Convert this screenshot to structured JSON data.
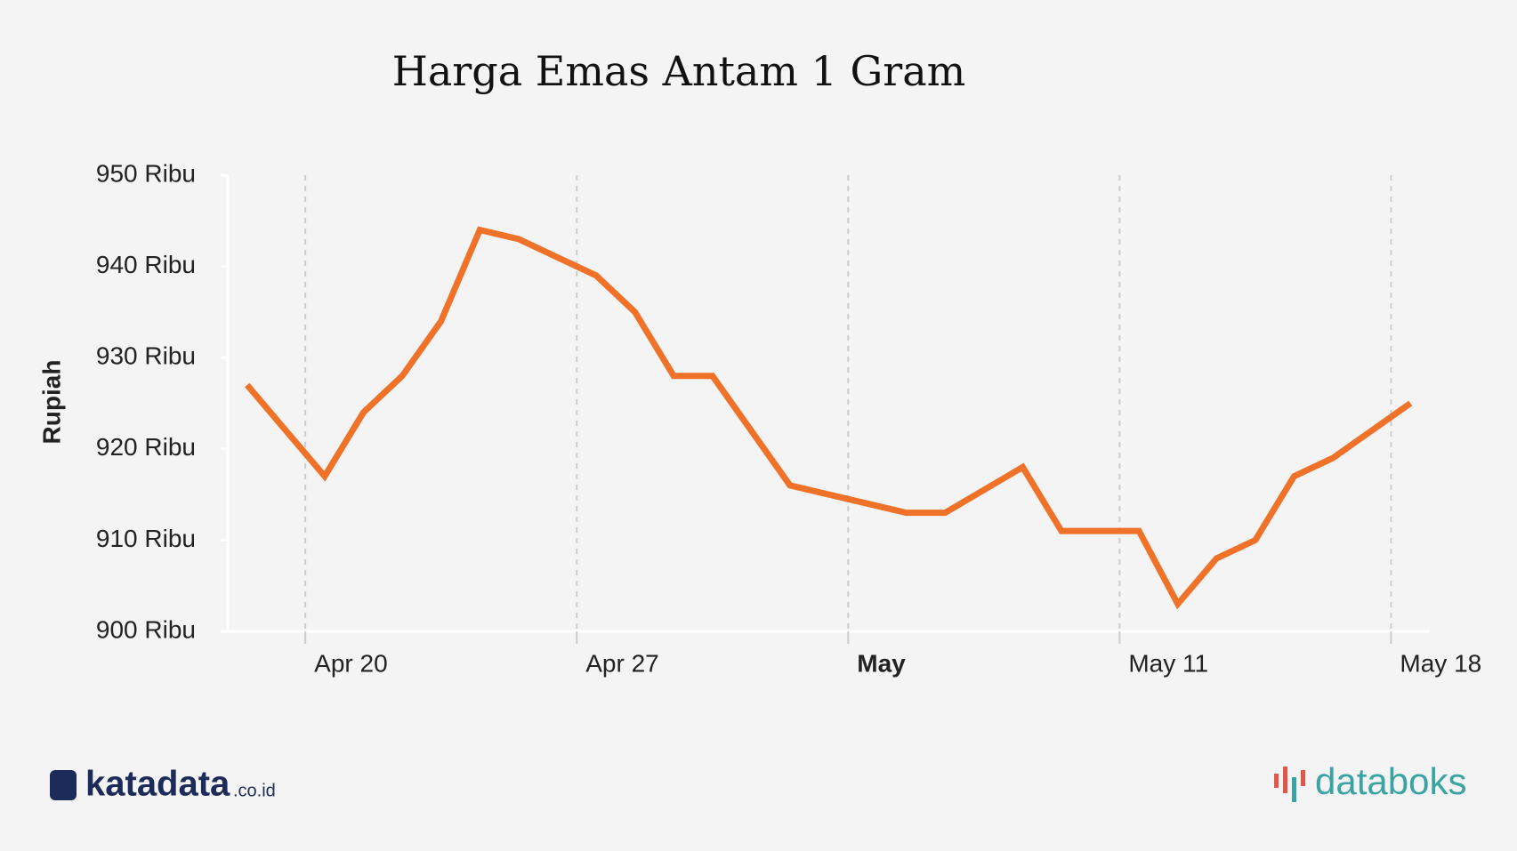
{
  "chart_data": {
    "type": "line",
    "title": "Harga Emas Antam 1 Gram",
    "y_label": "Rupiah",
    "x": [
      "Apr 18",
      "Apr 20",
      "Apr 21",
      "Apr 22",
      "Apr 23",
      "Apr 24",
      "Apr 25",
      "Apr 27",
      "Apr 28",
      "Apr 29",
      "Apr 30",
      "May 2",
      "May 5",
      "May 6",
      "May 8",
      "May 9",
      "May 10",
      "May 11",
      "May 12",
      "May 13",
      "May 14",
      "May 15",
      "May 16",
      "May 18"
    ],
    "series": [
      {
        "name": "Harga",
        "color": "#f07128",
        "values": [
          927,
          917,
          924,
          928,
          934,
          944,
          943,
          939,
          935,
          928,
          928,
          916,
          913,
          913,
          918,
          911,
          911,
          911,
          903,
          908,
          910,
          917,
          919,
          925
        ]
      }
    ],
    "xlim": [
      "Apr 18",
      "May 19"
    ],
    "xticks": [
      "Apr 20",
      "Apr 27",
      {
        "value": "May 4",
        "label": "May"
      },
      "May 11",
      "May 18"
    ],
    "ylim": [
      900,
      950
    ],
    "yticks": [
      {
        "value": 900,
        "label": "900 Ribu"
      },
      {
        "value": 910,
        "label": "910 Ribu"
      },
      {
        "value": 920,
        "label": "920 Ribu"
      },
      {
        "value": 930,
        "label": "930 Ribu"
      },
      {
        "value": 940,
        "label": "940 Ribu"
      },
      {
        "value": 950,
        "label": "950 Ribu"
      }
    ],
    "grid": true
  },
  "footer": {
    "left_logo": "katadata",
    "left_logo_suffix": ".co.id",
    "right_logo": "databoks"
  }
}
